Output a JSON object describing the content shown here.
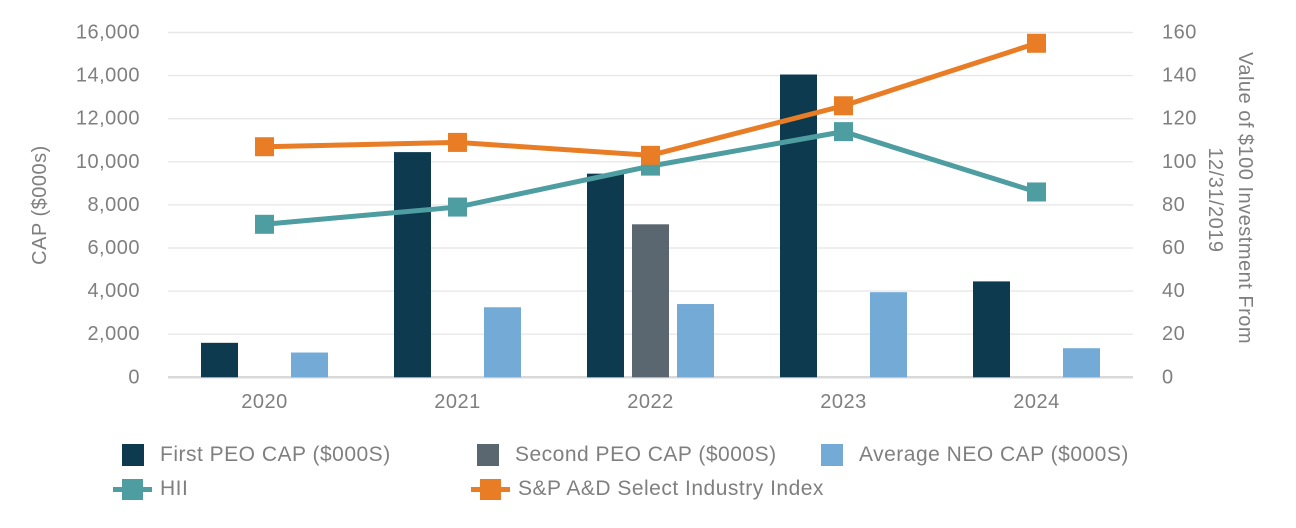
{
  "chart_data": {
    "type": "combo-bar-line",
    "categories": [
      "2020",
      "2021",
      "2022",
      "2023",
      "2024"
    ],
    "bar_series": [
      {
        "name": "First PEO CAP ($000S)",
        "color": "#0d3a4e",
        "axis": "left",
        "values": [
          1600,
          10450,
          9450,
          14050,
          4450
        ]
      },
      {
        "name": "Second PEO CAP ($000S)",
        "color": "#5b6770",
        "axis": "left",
        "values": [
          null,
          null,
          7100,
          null,
          null
        ]
      },
      {
        "name": "Average NEO CAP ($000S)",
        "color": "#74aad6",
        "axis": "left",
        "values": [
          1150,
          3250,
          3400,
          3950,
          1350
        ]
      }
    ],
    "line_series": [
      {
        "name": "HII",
        "color": "#4d9da1",
        "axis": "right",
        "values": [
          71,
          79,
          98,
          114,
          86
        ]
      },
      {
        "name": "S&P A&D Select Industry Index",
        "color": "#e87d26",
        "axis": "right",
        "values": [
          107,
          109,
          103,
          126,
          155
        ]
      }
    ],
    "left_axis": {
      "title": "CAP ($000s)",
      "min": 0,
      "max": 16000,
      "step": 2000,
      "tick_labels": [
        "0",
        "2,000",
        "4,000",
        "6,000",
        "8,000",
        "10,000",
        "12,000",
        "14,000",
        "16,000"
      ]
    },
    "right_axis": {
      "title_line1": "Value of $100 Investment From",
      "title_line2": "12/31/2019",
      "min": 0,
      "max": 160,
      "step": 20,
      "tick_labels": [
        "0",
        "20",
        "40",
        "60",
        "80",
        "100",
        "120",
        "140",
        "160"
      ]
    },
    "grid": true,
    "legend_position": "bottom",
    "marker": "square"
  },
  "styles": {
    "grid_color": "#e8e8e8",
    "baseline_color": "#d9d9d9",
    "text_color": "#7f7f7f"
  }
}
